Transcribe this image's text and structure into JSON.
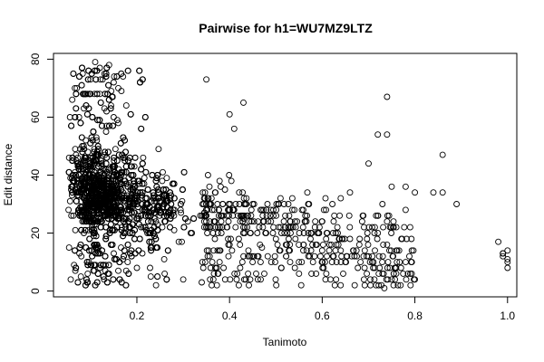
{
  "chart_data": {
    "type": "scatter",
    "title": "Pairwise for h1=WU7MZ9LTZ",
    "xlabel": "Tanimoto",
    "ylabel": "Edit distance",
    "xlim": [
      0.02,
      1.02
    ],
    "ylim": [
      -2,
      82
    ],
    "x_ticks": [
      0.2,
      0.4,
      0.6,
      0.8,
      1.0
    ],
    "x_tick_labels": [
      "0.2",
      "0.4",
      "0.6",
      "0.8",
      "1.0"
    ],
    "y_ticks": [
      0,
      20,
      40,
      60,
      80
    ],
    "y_tick_labels": [
      "0",
      "20",
      "40",
      "60",
      "80"
    ],
    "grid": false,
    "legend": "none",
    "marker": "open-circle",
    "color": "#000000",
    "distribution_note": "dense mass of points for Tanimoto 0.05-0.35 and edit distance 5-80 centered near (0.12, 33); sparse tail to Tanimoto 0.8 with edit distance mostly 2-40",
    "x": [
      0.06,
      0.07,
      0.08,
      0.09,
      0.1,
      0.11,
      0.12,
      0.13,
      0.14,
      0.15,
      0.16,
      0.17,
      0.18,
      0.2,
      0.22,
      0.25,
      0.28,
      0.31,
      0.35,
      0.08,
      0.1,
      0.12,
      0.14,
      0.16,
      0.18,
      0.2,
      0.23,
      0.26,
      0.3,
      0.34,
      0.11,
      0.12,
      0.13,
      0.14,
      0.15,
      0.16,
      0.17,
      0.12,
      0.14,
      0.13,
      0.15,
      0.16,
      0.36,
      0.37,
      0.38,
      0.39,
      0.4,
      0.41,
      0.42,
      0.43,
      0.44,
      0.45,
      0.46,
      0.47,
      0.48,
      0.49,
      0.5,
      0.51,
      0.52,
      0.53,
      0.54,
      0.55,
      0.56,
      0.57,
      0.58,
      0.59,
      0.6,
      0.61,
      0.62,
      0.63,
      0.64,
      0.65,
      0.66,
      0.67,
      0.68,
      0.69,
      0.7,
      0.71,
      0.72,
      0.73,
      0.74,
      0.75,
      0.76,
      0.77,
      0.78,
      0.79,
      0.8,
      0.72,
      0.74,
      0.76,
      0.73,
      0.78,
      0.66,
      0.64,
      0.7,
      0.75,
      0.78,
      0.8,
      0.84,
      0.86,
      0.86,
      0.89,
      0.74,
      0.72,
      0.74,
      0.43,
      0.41,
      0.4,
      0.35,
      0.98,
      0.99,
      0.99,
      1.0,
      1.0,
      1.0,
      0.99,
      1.0
    ],
    "y": [
      33,
      36,
      31,
      34,
      30,
      35,
      32,
      37,
      29,
      33,
      31,
      34,
      30,
      32,
      28,
      27,
      26,
      24,
      22,
      12,
      9,
      8,
      6,
      7,
      10,
      8,
      5,
      6,
      4,
      3,
      79,
      77,
      75,
      78,
      72,
      70,
      74,
      68,
      66,
      63,
      60,
      58,
      30,
      22,
      14,
      35,
      16,
      28,
      18,
      25,
      12,
      30,
      20,
      15,
      26,
      10,
      18,
      32,
      22,
      14,
      28,
      6,
      16,
      30,
      10,
      20,
      24,
      12,
      16,
      4,
      14,
      10,
      18,
      2,
      16,
      4,
      12,
      8,
      20,
      6,
      16,
      4,
      14,
      8,
      10,
      6,
      4,
      26,
      24,
      22,
      30,
      28,
      34,
      32,
      44,
      36,
      36,
      34,
      34,
      34,
      47,
      30,
      67,
      54,
      54,
      65,
      56,
      61,
      73,
      17,
      13,
      12,
      14,
      11,
      8,
      13,
      10
    ]
  }
}
